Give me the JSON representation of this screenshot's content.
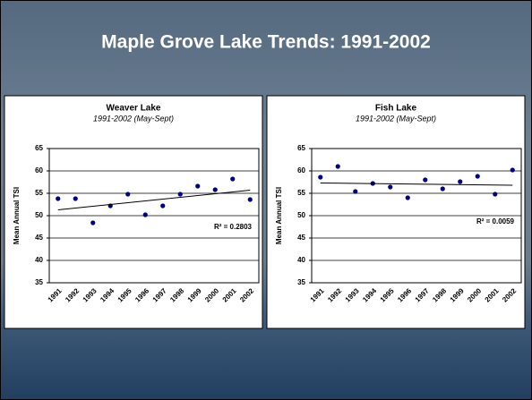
{
  "title": "Maple Grove Lake Trends: 1991-2002",
  "chart_data": [
    {
      "type": "scatter",
      "title": "Weaver Lake",
      "subtitle": "1991-2002 (May-Sept)",
      "y_label": "Mean Annual TSI",
      "categories": [
        "1991",
        "1992",
        "1993",
        "1994",
        "1995",
        "1996",
        "1997",
        "1998",
        "1999",
        "2000",
        "2001",
        "2002"
      ],
      "values": [
        53.8,
        53.8,
        48.4,
        52.2,
        54.8,
        50.2,
        52.2,
        54.8,
        56.6,
        55.8,
        58.2,
        53.6
      ],
      "color": "#000080",
      "trendline": {
        "label": "R² = 0.2803",
        "values": [
          51.3,
          55.7
        ]
      },
      "ylim": [
        35,
        65
      ],
      "yticks": [
        35,
        40,
        45,
        50,
        55,
        60,
        65
      ],
      "grid": true
    },
    {
      "type": "scatter",
      "title": "Fish Lake",
      "subtitle": "1991-2002 (May-Sept)",
      "y_label": "Mean Annual TSI",
      "categories": [
        "1991",
        "1992",
        "1993",
        "1994",
        "1995",
        "1996",
        "1997",
        "1998",
        "1999",
        "2000",
        "2001",
        "2002"
      ],
      "values": [
        58.6,
        61.0,
        55.4,
        57.2,
        56.4,
        54.0,
        58.0,
        56.0,
        57.6,
        58.8,
        54.8,
        60.2
      ],
      "color": "#000080",
      "trendline": {
        "label": "R² = 0.0059",
        "values": [
          57.3,
          56.8
        ]
      },
      "ylim": [
        35,
        65
      ],
      "yticks": [
        35,
        40,
        45,
        50,
        55,
        60,
        65
      ],
      "grid": true
    }
  ]
}
